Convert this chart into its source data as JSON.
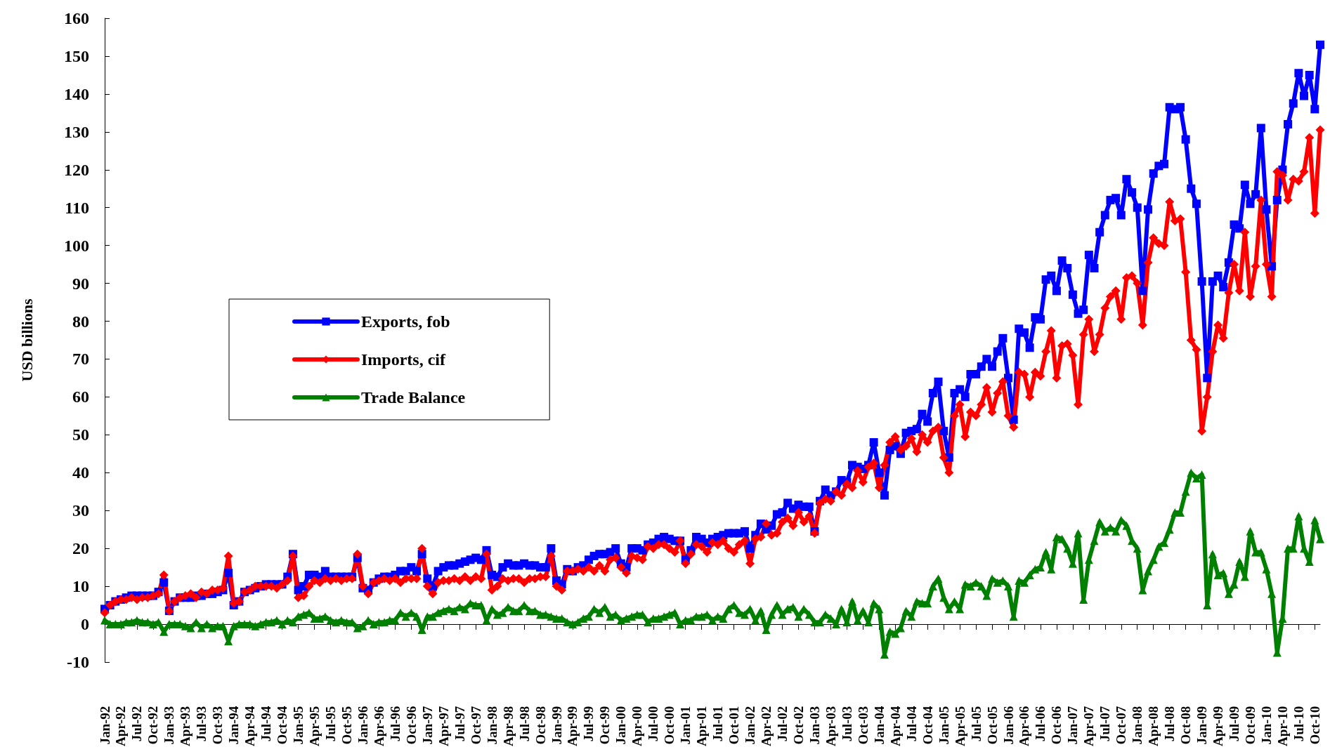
{
  "chart_data": {
    "type": "line",
    "ylabel": "USD billions",
    "legend": "left",
    "ylim": [
      -10,
      160
    ],
    "yticks": [
      -10,
      0,
      10,
      20,
      30,
      40,
      50,
      60,
      70,
      80,
      90,
      100,
      110,
      120,
      130,
      140,
      150,
      160
    ],
    "categories": [
      "Jan-92",
      null,
      null,
      "Apr-92",
      null,
      null,
      "Jul-92",
      null,
      null,
      "Oct-92",
      null,
      null,
      "Jan-93",
      null,
      null,
      "Apr-93",
      null,
      null,
      "Jul-93",
      null,
      null,
      "Oct-93",
      null,
      null,
      "Jan-94",
      null,
      null,
      "Apr-94",
      null,
      null,
      "Jul-94",
      null,
      null,
      "Oct-94",
      null,
      null,
      "Jan-95",
      null,
      null,
      "Apr-95",
      null,
      null,
      "Jul-95",
      null,
      null,
      "Oct-95",
      null,
      null,
      "Jan-96",
      null,
      null,
      "Apr-96",
      null,
      null,
      "Jul-96",
      null,
      null,
      "Oct-96",
      null,
      null,
      "Jan-97",
      null,
      null,
      "Apr-97",
      null,
      null,
      "Jul-97",
      null,
      null,
      "Oct-97",
      null,
      null,
      "Jan-98",
      null,
      null,
      "Apr-98",
      null,
      null,
      "Jul-98",
      null,
      null,
      "Oct-98",
      null,
      null,
      "Jan-99",
      null,
      null,
      "Apr-99",
      null,
      null,
      "Jul-99",
      null,
      null,
      "Oct-99",
      null,
      null,
      "Jan-00",
      null,
      null,
      "Apr-00",
      null,
      null,
      "Jul-00",
      null,
      null,
      "Oct-00",
      null,
      null,
      "Jan-01",
      null,
      null,
      "Apr-01",
      null,
      null,
      "Jul-01",
      null,
      null,
      "Oct-01",
      null,
      null,
      "Jan-02",
      null,
      null,
      "Apr-02",
      null,
      null,
      "Jul-02",
      null,
      null,
      "Oct-02",
      null,
      null,
      "Jan-03",
      null,
      null,
      "Apr-03",
      null,
      null,
      "Jul-03",
      null,
      null,
      "Oct-03",
      null,
      null,
      "Jan-04",
      null,
      null,
      "Apr-04",
      null,
      null,
      "Jul-04",
      null,
      null,
      "Oct-04",
      null,
      null,
      "Jan-05",
      null,
      null,
      "Apr-05",
      null,
      null,
      "Jul-05",
      null,
      null,
      "Oct-05",
      null,
      null,
      "Jan-06",
      null,
      null,
      "Apr-06",
      null,
      null,
      "Jul-06",
      null,
      null,
      "Oct-06",
      null,
      null,
      "Jan-07",
      null,
      null,
      "Apr-07",
      null,
      null,
      "Jul-07",
      null,
      null,
      "Oct-07",
      null,
      null,
      "Jan-08",
      null,
      null,
      "Apr-08",
      null,
      null,
      "Jul-08",
      null,
      null,
      "Oct-08",
      null,
      null,
      "Jan-09",
      null,
      null,
      "Apr-09",
      null,
      null,
      "Jul-09",
      null,
      null,
      "Oct-09",
      null,
      null,
      "Jan-10",
      null,
      null,
      "Apr-10",
      null,
      null,
      "Jul-10",
      null,
      null,
      "Oct-10",
      null
    ],
    "series": [
      {
        "name": "Exports, fob",
        "color": "#0000ff",
        "marker": "square",
        "values": [
          4,
          5,
          6,
          6.5,
          7,
          7.5,
          7.5,
          7.5,
          7.5,
          7.5,
          8.5,
          11,
          3.5,
          6,
          7,
          7,
          7,
          7.5,
          7.5,
          8,
          8,
          8.5,
          9,
          13.5,
          5,
          6,
          8.5,
          9,
          9.5,
          10,
          10.5,
          10.5,
          10.5,
          10.5,
          12.5,
          18.5,
          9,
          10,
          13,
          13,
          12.5,
          14,
          12.5,
          12.5,
          12.5,
          12.5,
          12.5,
          17.5,
          9.5,
          9,
          11,
          12,
          12.5,
          12.5,
          13,
          14,
          14,
          15,
          14,
          18.5,
          12,
          10,
          14,
          15,
          15.5,
          15.5,
          16,
          16.5,
          17,
          17.5,
          17,
          19.5,
          13,
          12.5,
          15,
          16,
          15.5,
          15.5,
          16,
          15.5,
          15.5,
          15,
          15,
          20,
          11.5,
          10.5,
          14.5,
          14,
          15,
          15.5,
          17,
          18,
          18.5,
          18.5,
          19,
          20,
          16,
          15,
          20,
          20,
          19.5,
          21,
          21.5,
          22.5,
          23,
          22.5,
          22,
          22,
          17,
          19.5,
          23,
          22.5,
          21.5,
          22.5,
          23,
          23.5,
          24,
          24,
          24,
          24.5,
          20,
          23.5,
          26.5,
          25,
          26,
          29,
          29.5,
          32,
          30.5,
          31.5,
          31,
          31,
          24.5,
          32.5,
          35.5,
          34,
          35,
          38,
          37.5,
          42,
          41.5,
          41,
          42,
          48,
          40,
          34,
          46,
          47,
          45,
          50.5,
          51,
          51.5,
          55.5,
          53.5,
          61,
          64,
          51,
          44,
          61,
          62,
          60,
          66,
          66,
          68,
          70,
          68,
          72,
          75.5,
          65,
          54,
          78,
          77,
          73,
          81,
          80.5,
          91,
          92,
          88,
          96,
          94,
          87,
          82,
          83,
          97.5,
          94,
          103.5,
          108,
          112,
          112.5,
          108,
          117.5,
          114,
          110,
          88,
          109.5,
          119,
          121,
          121.5,
          136.5,
          136,
          136.5,
          128,
          115,
          111,
          90.5,
          65,
          90.5,
          92,
          89,
          95.5,
          105.5,
          104.5,
          116,
          111,
          113.5,
          131,
          109.5,
          94.5,
          112,
          120,
          132,
          137.5,
          145.5,
          139.5,
          145,
          136,
          153
        ]
      },
      {
        "name": "Imports, cif",
        "color": "#ff0000",
        "marker": "diamond",
        "values": [
          3,
          5,
          6,
          6.5,
          6.5,
          7,
          6.5,
          7,
          7,
          7.5,
          8,
          13,
          3.5,
          6,
          7,
          7.5,
          8,
          7,
          8.5,
          8,
          9,
          9,
          9.5,
          18,
          5.5,
          6,
          8.5,
          9,
          10,
          10,
          10,
          10,
          9.5,
          10.5,
          11.5,
          18,
          7,
          7.5,
          10,
          11.5,
          11,
          12,
          11.5,
          12,
          11.5,
          12,
          12,
          18.5,
          10,
          8,
          11,
          11.5,
          12,
          11.5,
          12,
          11,
          12,
          12,
          12,
          20,
          10,
          8,
          11,
          11.5,
          11.5,
          12,
          11.5,
          12.5,
          11.5,
          12.5,
          12,
          18.5,
          9,
          10,
          12,
          11.5,
          12,
          12,
          11,
          12,
          12,
          12.5,
          12.5,
          18,
          10,
          9,
          14,
          14,
          14.5,
          14,
          15,
          14,
          15.5,
          14,
          17,
          17.5,
          15,
          13.5,
          18,
          17.5,
          17,
          20.5,
          20,
          21,
          21,
          20,
          19,
          22,
          16,
          18.5,
          21,
          20.5,
          19,
          21.5,
          21,
          22,
          20,
          19,
          21,
          22,
          16,
          22.5,
          23,
          26.5,
          23.5,
          24,
          27,
          28,
          26,
          29.5,
          27,
          28.5,
          24,
          32,
          33,
          32.5,
          35,
          34,
          37,
          36,
          40.5,
          37.5,
          41.5,
          42.5,
          36,
          42,
          48,
          49.5,
          46,
          47,
          49,
          45.5,
          50,
          48,
          51,
          52,
          44,
          40,
          55,
          58,
          49.5,
          56,
          55,
          58,
          62.5,
          56,
          61,
          64,
          55,
          52,
          66.5,
          66,
          60,
          66.5,
          65.5,
          72,
          77.5,
          65,
          73.5,
          74,
          71,
          58,
          76.5,
          80.5,
          72,
          76.5,
          83.5,
          86.5,
          88,
          80.5,
          91.5,
          92,
          90,
          79,
          95.5,
          102,
          100.5,
          100,
          111.5,
          106.5,
          107,
          93,
          75,
          72.5,
          51,
          60,
          72,
          79,
          75.5,
          87.5,
          95,
          88,
          103.5,
          86.5,
          94.5,
          112,
          95,
          86.5,
          119.5,
          118.5,
          112,
          117.5,
          117,
          119.5,
          128.5,
          108.5,
          130.5
        ]
      },
      {
        "name": "Trade Balance",
        "color": "#008000",
        "marker": "triangle",
        "values": [
          1,
          0,
          0,
          0,
          0.5,
          0.5,
          1,
          0.5,
          0.5,
          0,
          0.5,
          -2,
          0,
          0,
          0,
          -0.5,
          -1,
          0.5,
          -1,
          0,
          -1,
          -0.5,
          -0.5,
          -4.5,
          -0.5,
          0,
          0,
          0,
          -0.5,
          0,
          0.5,
          0.5,
          1,
          0,
          1,
          0.5,
          2,
          2.5,
          3,
          1.5,
          1.5,
          2,
          1,
          0.5,
          1,
          0.5,
          0.5,
          -1,
          -0.5,
          1,
          0,
          0.5,
          0.5,
          1,
          1,
          3,
          2,
          3,
          2,
          -1.5,
          2,
          2,
          3,
          3.5,
          4,
          3.5,
          4.5,
          4,
          5.5,
          5,
          5,
          1,
          4,
          2.5,
          3,
          4.5,
          3.5,
          3.5,
          5,
          3.5,
          3.5,
          2.5,
          2.5,
          2,
          1.5,
          1.5,
          0.5,
          0,
          0.5,
          1.5,
          2,
          4,
          3,
          4.5,
          2,
          2.5,
          1,
          1.5,
          2,
          2.5,
          2.5,
          0.5,
          1.5,
          1.5,
          2,
          2.5,
          3,
          0,
          1,
          1,
          2,
          2,
          2.5,
          1,
          2,
          1.5,
          4,
          5,
          3,
          2.5,
          4,
          1,
          3.5,
          -1.5,
          2.5,
          5,
          2.5,
          4,
          4.5,
          2,
          4,
          2.5,
          0.5,
          0.5,
          2.5,
          1.5,
          0,
          4,
          0.5,
          6,
          1,
          3.5,
          0.5,
          5.5,
          4,
          -8,
          -2,
          -2.5,
          -1,
          3.5,
          2,
          6,
          5.5,
          5.5,
          10,
          12,
          7,
          4,
          6,
          4,
          10.5,
          10,
          11,
          10,
          7.5,
          12,
          11,
          11.5,
          10,
          2,
          11.5,
          11,
          13,
          14.5,
          15,
          19,
          14.5,
          23,
          22.5,
          20,
          16,
          24,
          6.5,
          17,
          22,
          27,
          24.5,
          25.5,
          24.5,
          27.5,
          26,
          22,
          20,
          9,
          14,
          17,
          20.5,
          21.5,
          25,
          29.5,
          29.5,
          35,
          40,
          38.5,
          39.5,
          5,
          18.5,
          13,
          13.5,
          8,
          10.5,
          16.5,
          12.5,
          24.5,
          19,
          19,
          14.5,
          8,
          -7.5,
          1.5,
          20,
          20,
          28.5,
          20,
          16.5,
          27.5,
          22.5
        ]
      }
    ]
  }
}
